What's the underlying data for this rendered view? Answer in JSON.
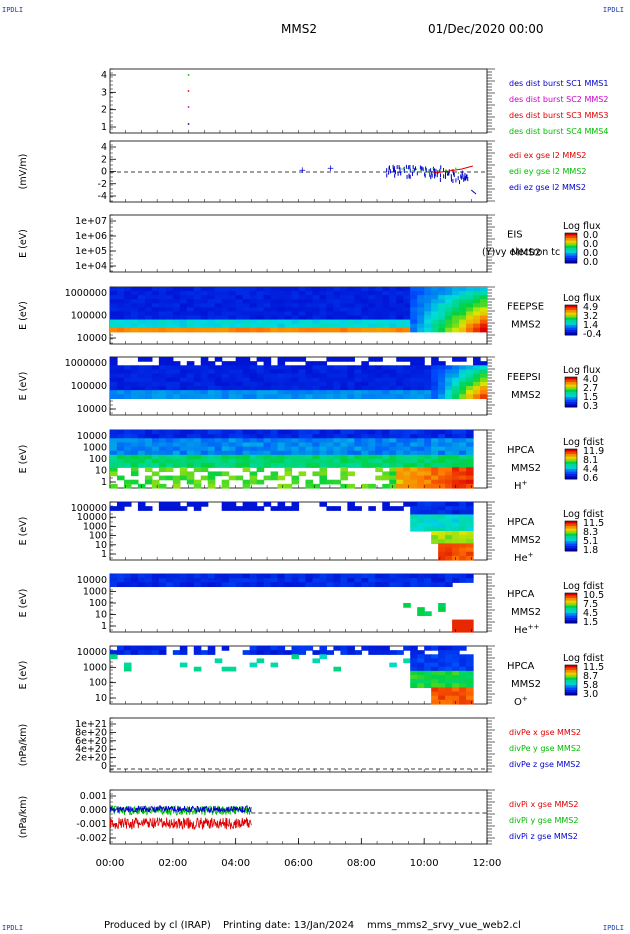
{
  "corners": {
    "tl": "IPDLI",
    "tr": "IPDLI",
    "bl": "IPDLI",
    "br": "IPDLI"
  },
  "header": {
    "spacecraft": "MMS2",
    "datetime": "01/Dec/2020 00:00"
  },
  "footer": {
    "produced_by": "Produced by cl (IRAP)",
    "printing_date": "Printing date: 13/Jan/2024",
    "file": "mms_mms2_srvy_vue_web2.cl"
  },
  "chart_data": [
    {
      "id": "burst",
      "type": "scatter",
      "title": "",
      "ylabel": "",
      "yticks": [
        "4",
        "3",
        "2",
        "1"
      ],
      "legend": [
        {
          "text": "des dist burst SC1 MMS1",
          "color": "#0000cc"
        },
        {
          "text": "des dist burst SC2 MMS2",
          "color": "#cc00cc"
        },
        {
          "text": "des dist burst SC3 MMS3",
          "color": "#dd0000"
        },
        {
          "text": "des dist burst SC4 MMS4",
          "color": "#00bb00"
        }
      ],
      "series": [
        {
          "sc": 1,
          "x": [
            1.0
          ]
        },
        {
          "sc": 2,
          "x": [
            1.0
          ]
        },
        {
          "sc": 3,
          "x": [
            1.0
          ]
        },
        {
          "sc": 4,
          "x": [
            1.0
          ]
        }
      ]
    },
    {
      "id": "edi",
      "type": "line",
      "ylabel": "(mV/m)",
      "yticks": [
        "4",
        "2",
        "0",
        "-2",
        "-4"
      ],
      "ylim": [
        -5,
        5
      ],
      "legend": [
        {
          "text": "edi ex gse l2 MMS2",
          "color": "#dd0000"
        },
        {
          "text": "edi ey gse l2 MMS2",
          "color": "#00bb00"
        },
        {
          "text": "edi ez gse l2 MMS2",
          "color": "#0000cc"
        }
      ]
    },
    {
      "id": "eis",
      "type": "heatmap",
      "ylabel": "E (eV)",
      "yticks": [
        "1e+07",
        "1e+06",
        "1e+05",
        "1e+04"
      ],
      "right_label": "EIS",
      "right_label2": "MMS2",
      "overlay_text": "(Y)vy electron tc",
      "cbar_title": "Log flux",
      "cbar": [
        "0.0",
        "0.0",
        "0.0",
        "0.0"
      ]
    },
    {
      "id": "feepse",
      "type": "heatmap",
      "ylabel": "E (eV)",
      "yticks": [
        "1000000",
        "100000",
        "10000"
      ],
      "right_label": "FEEPSE",
      "right_label2": "MMS2",
      "cbar_title": "Log flux",
      "cbar": [
        "4.9",
        "3.2",
        "1.4",
        "-0.4"
      ]
    },
    {
      "id": "feepsi",
      "type": "heatmap",
      "ylabel": "E (eV)",
      "yticks": [
        "1000000",
        "100000",
        "10000"
      ],
      "right_label": "FEEPSI",
      "right_label2": "MMS2",
      "cbar_title": "Log flux",
      "cbar": [
        "4.0",
        "2.7",
        "1.5",
        "0.3"
      ]
    },
    {
      "id": "hpca_h",
      "type": "heatmap",
      "ylabel": "E (eV)",
      "yticks": [
        "10000",
        "1000",
        "100",
        "10",
        "1"
      ],
      "right_label": "HPCA",
      "right_label2": "MMS2",
      "species": "H",
      "species_sup": "+",
      "cbar_title": "Log fdist",
      "cbar": [
        "11.9",
        "8.1",
        "4.4",
        "0.6"
      ]
    },
    {
      "id": "hpca_he1",
      "type": "heatmap",
      "ylabel": "E (eV)",
      "yticks": [
        "100000",
        "10000",
        "1000",
        "100",
        "10",
        "1"
      ],
      "right_label": "HPCA",
      "right_label2": "MMS2",
      "species": "He",
      "species_sup": "+",
      "cbar_title": "Log fdist",
      "cbar": [
        "11.5",
        "8.3",
        "5.1",
        "1.8"
      ]
    },
    {
      "id": "hpca_he2",
      "type": "heatmap",
      "ylabel": "E (eV)",
      "yticks": [
        "10000",
        "1000",
        "100",
        "10",
        "1"
      ],
      "right_label": "HPCA",
      "right_label2": "MMS2",
      "species": "He",
      "species_sup": "++",
      "cbar_title": "Log fdist",
      "cbar": [
        "10.5",
        "7.5",
        "4.5",
        "1.5"
      ]
    },
    {
      "id": "hpca_o",
      "type": "heatmap",
      "ylabel": "E (eV)",
      "yticks": [
        "10000",
        "1000",
        "100",
        "10"
      ],
      "right_label": "HPCA",
      "right_label2": "MMS2",
      "species": "O",
      "species_sup": "+",
      "cbar_title": "Log fdist",
      "cbar": [
        "11.5",
        "8.7",
        "5.8",
        "3.0"
      ]
    },
    {
      "id": "divpe",
      "type": "line",
      "ylabel": "(nPa/km)",
      "yticks": [
        "1e+21",
        "8e+20",
        "6e+20",
        "4e+20",
        "2e+20",
        "0"
      ],
      "legend": [
        {
          "text": "divPe x gse MMS2",
          "color": "#dd0000"
        },
        {
          "text": "divPe y gse MMS2",
          "color": "#00bb00"
        },
        {
          "text": "divPe z gse MMS2",
          "color": "#0000cc"
        }
      ]
    },
    {
      "id": "divpi",
      "type": "line",
      "ylabel": "(nPa/km)",
      "yticks": [
        "0.001",
        "0.000",
        "-0.001",
        "-0.002"
      ],
      "ylim": [
        -0.0025,
        0.0015
      ],
      "legend": [
        {
          "text": "divPi x gse MMS2",
          "color": "#dd0000"
        },
        {
          "text": "divPi y gse MMS2",
          "color": "#00bb00"
        },
        {
          "text": "divPi z gse MMS2",
          "color": "#0000cc"
        }
      ]
    }
  ],
  "xaxis": {
    "ticks": [
      "00:00",
      "02:00",
      "04:00",
      "06:00",
      "08:00",
      "10:00",
      "12:00"
    ],
    "range_hours": [
      0,
      12
    ]
  }
}
